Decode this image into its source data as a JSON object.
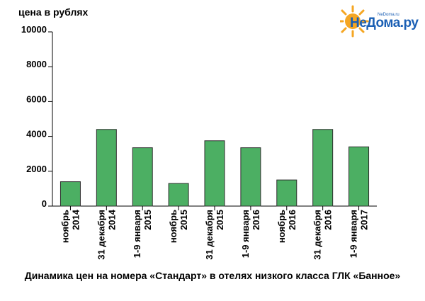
{
  "logo": {
    "text": "НеДома.ру",
    "site": "NeDoma.ru",
    "sun_color": "#f5a623",
    "text_color": "#1a5fb4"
  },
  "chart_data": {
    "type": "bar",
    "ylabel": "цена в рублях",
    "caption": "Динамика цен на номера «Стандарт» в отелях низкого класса ГЛК «Банное»",
    "ylim": [
      0,
      10000
    ],
    "yticks": [
      "0",
      "2000",
      "4000",
      "6000",
      "8000",
      "10000"
    ],
    "ytick_values": [
      0,
      2000,
      4000,
      6000,
      8000,
      10000
    ],
    "categories": [
      [
        "ноябрь",
        "2014"
      ],
      [
        "31 декабря",
        "2014"
      ],
      [
        "1-9 января",
        "2015"
      ],
      [
        "ноябрь",
        "2015"
      ],
      [
        "31 декабря",
        "2015"
      ],
      [
        "1-9 января",
        "2016"
      ],
      [
        "ноябрь",
        "2016"
      ],
      [
        "31 декабря",
        "2016"
      ],
      [
        "1-9 января",
        "2017"
      ]
    ],
    "values": [
      1400,
      4400,
      3350,
      1300,
      3750,
      3350,
      1500,
      4400,
      3400
    ],
    "bar_color": "#4caf63",
    "bar_edge_color": "#2e2e2e",
    "grid": false
  }
}
